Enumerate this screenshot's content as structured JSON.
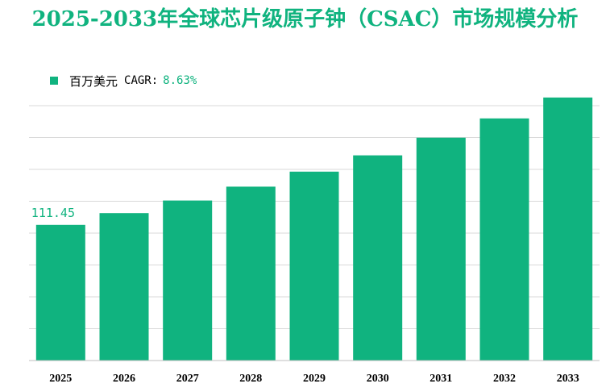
{
  "title": "2025-2033年全球芯片级原子钟（CSAC）市场规模分析",
  "legend": {
    "label": "百万美元",
    "cagr_label": "CAGR:",
    "cagr_value": "8.63%"
  },
  "colors": {
    "bar": "#10b37f",
    "title": "#10b37f",
    "grid": "#d9d9d9",
    "axis": "#bfbfbf"
  },
  "chart_data": {
    "type": "bar",
    "categories": [
      "2025",
      "2026",
      "2027",
      "2028",
      "2029",
      "2030",
      "2031",
      "2032",
      "2033"
    ],
    "values": [
      111.45,
      121.1,
      131.5,
      142.9,
      155.2,
      168.6,
      183.1,
      198.9,
      216.1
    ],
    "data_labels": [
      "111.45",
      "",
      "",
      "",
      "",
      "",
      "",
      "",
      ""
    ],
    "title": "2025-2033年全球芯片级原子钟（CSAC）市场规模分析",
    "xlabel": "",
    "ylabel": "",
    "ylim": [
      0,
      220
    ],
    "grid": true,
    "legend_position": "top-left"
  }
}
